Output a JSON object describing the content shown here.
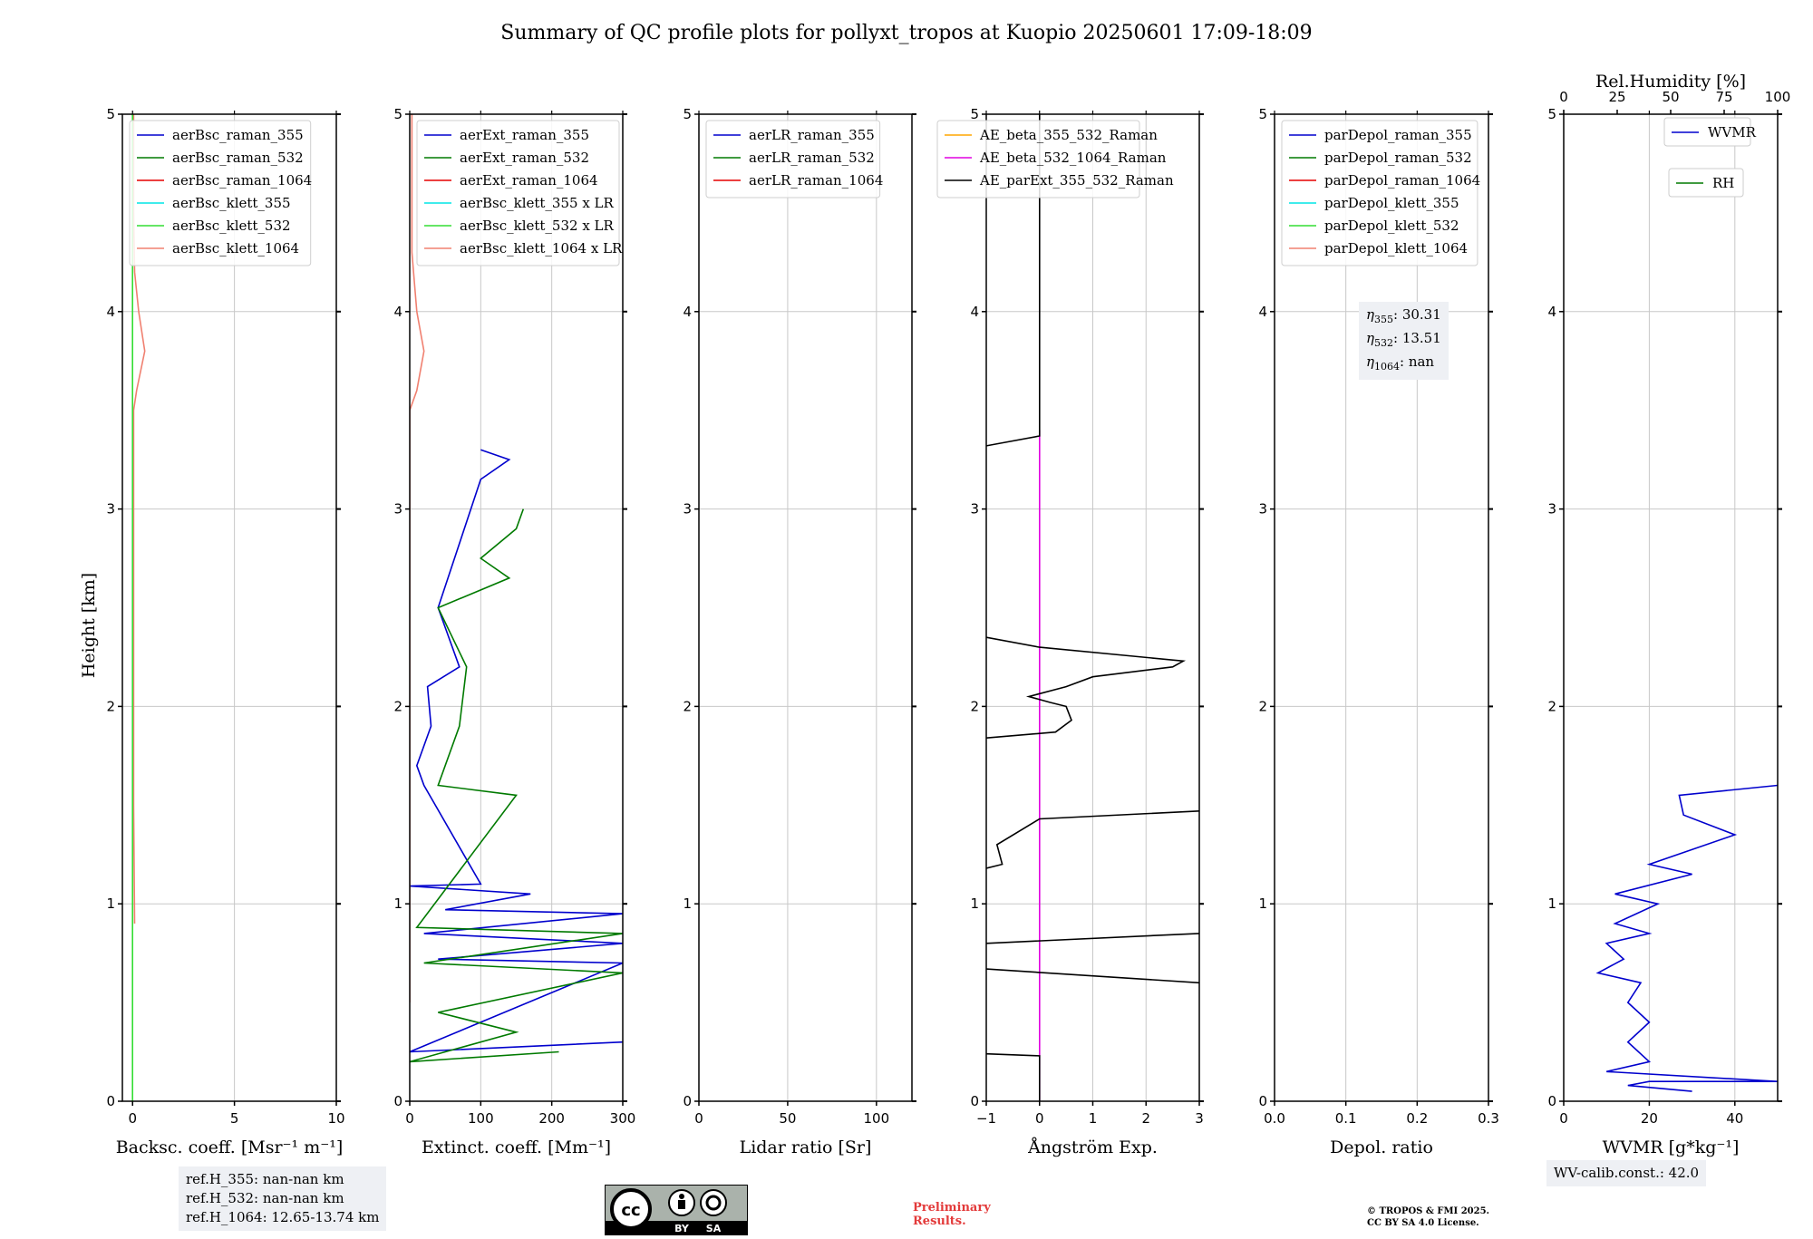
{
  "title": "Summary of QC profile plots for pollyxt_tropos at Kuopio 20250601 17:09-18:09",
  "ylabel": "Height [km]",
  "yticks": [
    "0",
    "1",
    "2",
    "3",
    "4",
    "5"
  ],
  "colors": {
    "b355": "#0000cd",
    "g532": "#007a00",
    "r1064": "#e60000",
    "c355": "#00e5e5",
    "lg532": "#33dd33",
    "salmon": "#f08070",
    "orange": "#ffa500",
    "magenta": "#e000e0",
    "black": "#000000"
  },
  "chart_data": [
    {
      "type": "line",
      "xlabel": "Backsc. coeff. [Msr⁻¹ m⁻¹]",
      "xlim": [
        -0.5,
        10
      ],
      "xticks": [
        0,
        5,
        10
      ],
      "xticklabels": [
        "0",
        "5",
        "10"
      ],
      "ylim": [
        0,
        5
      ],
      "legend": [
        "aerBsc_raman_355",
        "aerBsc_raman_532",
        "aerBsc_raman_1064",
        "aerBsc_klett_355",
        "aerBsc_klett_532",
        "aerBsc_klett_1064"
      ],
      "legend_colors": [
        "#0000cd",
        "#007a00",
        "#e60000",
        "#00e5e5",
        "#33dd33",
        "#f08070"
      ],
      "series": [
        {
          "name": "aerBsc_klett_1064",
          "color": "#f08070",
          "points": [
            [
              0.1,
              0.9
            ],
            [
              0.05,
              1.5
            ],
            [
              0.05,
              2.5
            ],
            [
              0.05,
              3.5
            ],
            [
              0.2,
              3.6
            ],
            [
              0.6,
              3.8
            ],
            [
              0.3,
              4.0
            ],
            [
              0.1,
              4.2
            ],
            [
              0.05,
              4.5
            ],
            [
              0.05,
              5.0
            ]
          ]
        },
        {
          "name": "aerBsc_klett_532",
          "color": "#33dd33",
          "points": [
            [
              0,
              0
            ],
            [
              0,
              5
            ]
          ]
        }
      ]
    },
    {
      "type": "line",
      "xlabel": "Extinct. coeff. [Mm⁻¹]",
      "xlim": [
        0,
        300
      ],
      "xticks": [
        0,
        100,
        200,
        300
      ],
      "xticklabels": [
        "0",
        "100",
        "200",
        "300"
      ],
      "ylim": [
        0,
        5
      ],
      "legend": [
        "aerExt_raman_355",
        "aerExt_raman_532",
        "aerExt_raman_1064",
        "aerBsc_klett_355 x LR",
        "aerBsc_klett_532 x LR",
        "aerBsc_klett_1064 x LR"
      ],
      "legend_colors": [
        "#0000cd",
        "#007a00",
        "#e60000",
        "#00e5e5",
        "#33dd33",
        "#f08070"
      ],
      "series": [
        {
          "name": "aerExt_raman_355",
          "color": "#0000cd",
          "points": [
            [
              300,
              0.3
            ],
            [
              0,
              0.25
            ],
            [
              300,
              0.7
            ],
            [
              40,
              0.72
            ],
            [
              300,
              0.8
            ],
            [
              20,
              0.85
            ],
            [
              300,
              0.95
            ],
            [
              50,
              0.97
            ],
            [
              170,
              1.05
            ],
            [
              0,
              1.09
            ],
            [
              100,
              1.1
            ],
            [
              20,
              1.6
            ],
            [
              10,
              1.7
            ],
            [
              30,
              1.9
            ],
            [
              25,
              2.1
            ],
            [
              70,
              2.2
            ],
            [
              40,
              2.5
            ],
            [
              100,
              3.15
            ],
            [
              140,
              3.25
            ],
            [
              100,
              3.3
            ]
          ]
        },
        {
          "name": "aerExt_raman_532",
          "color": "#007a00",
          "points": [
            [
              210,
              0.25
            ],
            [
              0,
              0.2
            ],
            [
              150,
              0.35
            ],
            [
              40,
              0.45
            ],
            [
              300,
              0.65
            ],
            [
              20,
              0.7
            ],
            [
              300,
              0.85
            ],
            [
              10,
              0.88
            ],
            [
              150,
              1.55
            ],
            [
              40,
              1.6
            ],
            [
              70,
              1.9
            ],
            [
              80,
              2.2
            ],
            [
              40,
              2.5
            ],
            [
              140,
              2.65
            ],
            [
              100,
              2.75
            ],
            [
              150,
              2.9
            ],
            [
              160,
              3.0
            ]
          ]
        },
        {
          "name": "aerBsc_klett_1064 x LR",
          "color": "#f08070",
          "points": [
            [
              0,
              0.5
            ],
            [
              0,
              3.5
            ],
            [
              10,
              3.6
            ],
            [
              20,
              3.8
            ],
            [
              10,
              4.0
            ],
            [
              3,
              4.3
            ],
            [
              3,
              5.0
            ]
          ]
        }
      ]
    },
    {
      "type": "line",
      "xlabel": "Lidar ratio [Sr]",
      "xlim": [
        0,
        120
      ],
      "xticks": [
        0,
        50,
        100
      ],
      "xticklabels": [
        "0",
        "50",
        "100"
      ],
      "ylim": [
        0,
        5
      ],
      "legend": [
        "aerLR_raman_355",
        "aerLR_raman_532",
        "aerLR_raman_1064"
      ],
      "legend_colors": [
        "#0000cd",
        "#007a00",
        "#e60000"
      ],
      "series": []
    },
    {
      "type": "line",
      "xlabel": "Ångström Exp.",
      "xlim": [
        -1,
        3
      ],
      "xticks": [
        -1,
        0,
        1,
        2,
        3
      ],
      "xticklabels": [
        "−1",
        "0",
        "1",
        "2",
        "3"
      ],
      "ylim": [
        0,
        5
      ],
      "legend": [
        "AE_beta_355_532_Raman",
        "AE_beta_532_1064_Raman",
        "AE_parExt_355_532_Raman"
      ],
      "legend_colors": [
        "#ffa500",
        "#e000e0",
        "#000000"
      ],
      "series": [
        {
          "name": "AE_beta_532_1064_Raman",
          "color": "#e000e0",
          "points": [
            [
              0,
              0
            ],
            [
              0,
              3.4
            ]
          ]
        },
        {
          "name": "AE_parExt_355_532_Raman",
          "color": "#000000",
          "points": [
            [
              -1,
              0.24
            ],
            [
              0,
              0.23
            ],
            [
              0,
              0.0
            ]
          ]
        },
        {
          "name": "AE_parExt_355_532_Raman",
          "color": "#000000",
          "points": [
            [
              -1,
              0.67
            ],
            [
              3,
              0.6
            ]
          ]
        },
        {
          "name": "AE_parExt_355_532_Raman",
          "color": "#000000",
          "points": [
            [
              -1,
              0.8
            ],
            [
              3,
              0.85
            ]
          ]
        },
        {
          "name": "AE_parExt_355_532_Raman",
          "color": "#000000",
          "points": [
            [
              -1,
              1.18
            ],
            [
              -0.7,
              1.2
            ],
            [
              -0.8,
              1.3
            ],
            [
              0,
              1.43
            ],
            [
              3,
              1.47
            ]
          ]
        },
        {
          "name": "AE_parExt_355_532_Raman",
          "color": "#000000",
          "points": [
            [
              -1,
              1.84
            ],
            [
              0.3,
              1.87
            ],
            [
              0.6,
              1.93
            ],
            [
              0.5,
              2.0
            ],
            [
              0.2,
              2.02
            ],
            [
              -0.2,
              2.05
            ],
            [
              0.5,
              2.1
            ],
            [
              1,
              2.15
            ],
            [
              2.5,
              2.2
            ],
            [
              2.7,
              2.23
            ],
            [
              0,
              2.3
            ],
            [
              -1,
              2.35
            ]
          ]
        },
        {
          "name": "AE_parExt_355_532_Raman",
          "color": "#000000",
          "points": [
            [
              -1,
              3.32
            ],
            [
              0,
              3.37
            ],
            [
              0,
              5.0
            ]
          ]
        }
      ]
    },
    {
      "type": "line",
      "xlabel": "Depol. ratio",
      "xlim": [
        0,
        0.3
      ],
      "xticks": [
        0,
        0.1,
        0.2,
        0.3
      ],
      "xticklabels": [
        "0.0",
        "0.1",
        "0.2",
        "0.3"
      ],
      "ylim": [
        0,
        5
      ],
      "legend": [
        "parDepol_raman_355",
        "parDepol_raman_532",
        "parDepol_raman_1064",
        "parDepol_klett_355",
        "parDepol_klett_532",
        "parDepol_klett_1064"
      ],
      "legend_colors": [
        "#0000cd",
        "#007a00",
        "#e60000",
        "#00e5e5",
        "#33dd33",
        "#f08070"
      ],
      "series": []
    },
    {
      "type": "line",
      "xlabel": "WVMR [g*kg⁻¹]",
      "xlim": [
        0,
        50
      ],
      "xticks": [
        0,
        20,
        40
      ],
      "xticklabels": [
        "0",
        "20",
        "40"
      ],
      "ylim": [
        0,
        5
      ],
      "top_axis": {
        "label": "Rel.Humidity [%]",
        "lim": [
          0,
          100
        ],
        "ticks": [
          "0",
          "25",
          "50",
          "75",
          "100"
        ]
      },
      "legend": [
        "WVMR",
        "RH"
      ],
      "legend_colors": [
        "#0000cd",
        "#007a00"
      ],
      "series": [
        {
          "name": "WVMR",
          "color": "#0000cd",
          "points": [
            [
              30,
              0.05
            ],
            [
              15,
              0.08
            ],
            [
              20,
              0.1
            ],
            [
              50,
              0.1
            ],
            [
              10,
              0.15
            ],
            [
              20,
              0.2
            ],
            [
              15,
              0.3
            ],
            [
              20,
              0.4
            ],
            [
              15,
              0.5
            ],
            [
              18,
              0.6
            ],
            [
              8,
              0.65
            ],
            [
              14,
              0.72
            ],
            [
              10,
              0.8
            ],
            [
              20,
              0.85
            ],
            [
              12,
              0.9
            ],
            [
              22,
              1.0
            ],
            [
              12,
              1.05
            ],
            [
              30,
              1.15
            ],
            [
              20,
              1.2
            ],
            [
              40,
              1.35
            ],
            [
              28,
              1.45
            ],
            [
              27,
              1.55
            ],
            [
              50,
              1.6
            ]
          ]
        }
      ]
    }
  ],
  "eta": {
    "e355": "30.31",
    "e532": "13.51",
    "e1064": "nan"
  },
  "refh": {
    "l1": "ref.H_355: nan-nan km",
    "l2": "ref.H_532: nan-nan km",
    "l3": "ref.H_1064: 12.65-13.74 km"
  },
  "wvcalib": "WV-calib.const.: 42.0",
  "prelim": {
    "l1": "Preliminary",
    "l2": "Results."
  },
  "copyright": {
    "l1": "© TROPOS & FMI 2025.",
    "l2": "CC BY SA 4.0 License."
  },
  "cc_badge": {
    "by": "BY",
    "sa": "SA"
  }
}
